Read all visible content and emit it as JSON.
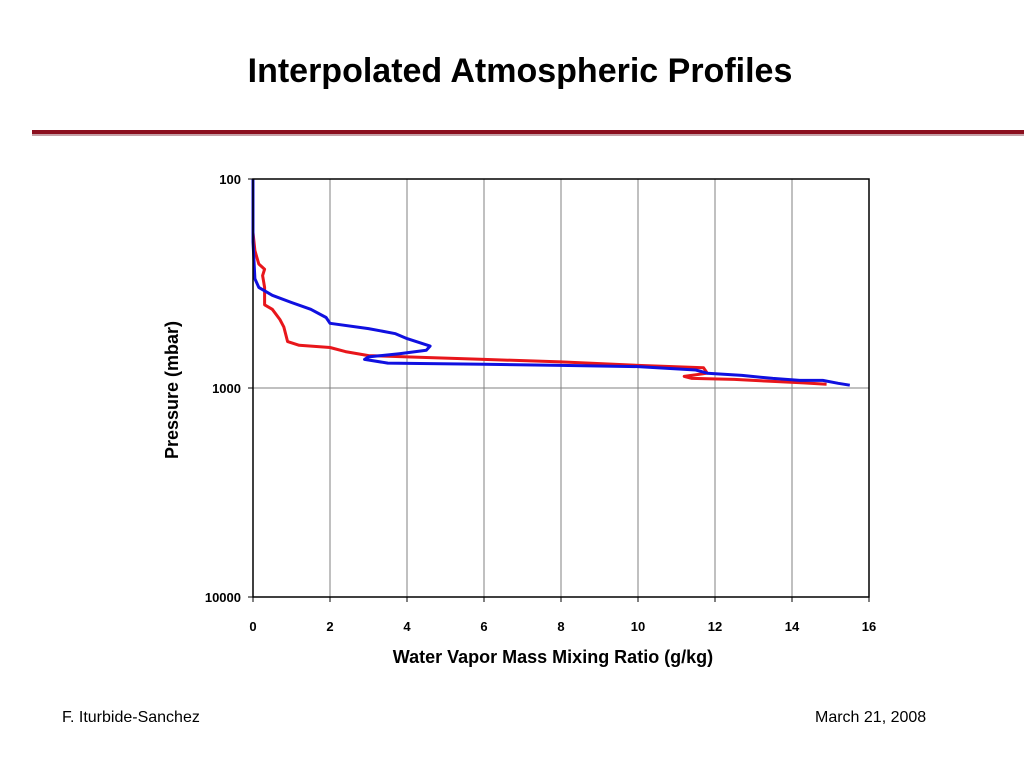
{
  "slide": {
    "title": "Interpolated Atmospheric Profiles",
    "footer_left": "F. Iturbide-Sanchez",
    "footer_right": "March 21, 2008"
  },
  "colors": {
    "title_rule": "#8b0f1e",
    "series_red": "#e8161b",
    "series_blue": "#1010e0",
    "grid": "#808080"
  },
  "chart_data": {
    "type": "line",
    "title": "",
    "xlabel": "Water Vapor Mass Mixing Ratio (g/kg)",
    "ylabel": "Pressure (mbar)",
    "xlim": [
      0,
      16
    ],
    "ylim": [
      100,
      10000
    ],
    "y_scale": "log",
    "y_reversed": true,
    "grid": "on",
    "x_ticks": [
      "0",
      "2",
      "4",
      "6",
      "8",
      "10",
      "12",
      "14",
      "16"
    ],
    "y_ticks": [
      "100",
      "1000",
      "10000"
    ],
    "series": [
      {
        "color": "#e8161b",
        "points": [
          [
            0.0,
            100
          ],
          [
            0.0,
            180
          ],
          [
            0.05,
            220
          ],
          [
            0.15,
            255
          ],
          [
            0.3,
            270
          ],
          [
            0.25,
            290
          ],
          [
            0.3,
            330
          ],
          [
            0.3,
            400
          ],
          [
            0.5,
            420
          ],
          [
            0.7,
            470
          ],
          [
            0.8,
            510
          ],
          [
            0.9,
            600
          ],
          [
            1.2,
            625
          ],
          [
            2.0,
            640
          ],
          [
            2.4,
            670
          ],
          [
            3.0,
            700
          ],
          [
            4.0,
            710
          ],
          [
            6.0,
            730
          ],
          [
            8.0,
            750
          ],
          [
            10.0,
            780
          ],
          [
            11.7,
            800
          ],
          [
            11.8,
            850
          ],
          [
            11.2,
            880
          ],
          [
            11.4,
            900
          ],
          [
            12.5,
            910
          ],
          [
            13.5,
            930
          ],
          [
            14.3,
            945
          ],
          [
            14.9,
            960
          ]
        ]
      },
      {
        "color": "#1010e0",
        "points": [
          [
            0.0,
            100
          ],
          [
            0.0,
            200
          ],
          [
            0.05,
            300
          ],
          [
            0.15,
            330
          ],
          [
            0.5,
            360
          ],
          [
            1.0,
            390
          ],
          [
            1.5,
            420
          ],
          [
            1.9,
            460
          ],
          [
            2.0,
            490
          ],
          [
            3.0,
            520
          ],
          [
            3.7,
            550
          ],
          [
            4.0,
            580
          ],
          [
            4.6,
            630
          ],
          [
            4.5,
            660
          ],
          [
            3.8,
            685
          ],
          [
            3.0,
            710
          ],
          [
            2.9,
            730
          ],
          [
            3.5,
            760
          ],
          [
            6.0,
            770
          ],
          [
            8.0,
            780
          ],
          [
            10.0,
            790
          ],
          [
            11.5,
            820
          ],
          [
            11.8,
            850
          ],
          [
            12.7,
            870
          ],
          [
            13.5,
            900
          ],
          [
            14.2,
            920
          ],
          [
            14.8,
            920
          ],
          [
            15.2,
            950
          ],
          [
            15.5,
            970
          ]
        ]
      }
    ]
  }
}
